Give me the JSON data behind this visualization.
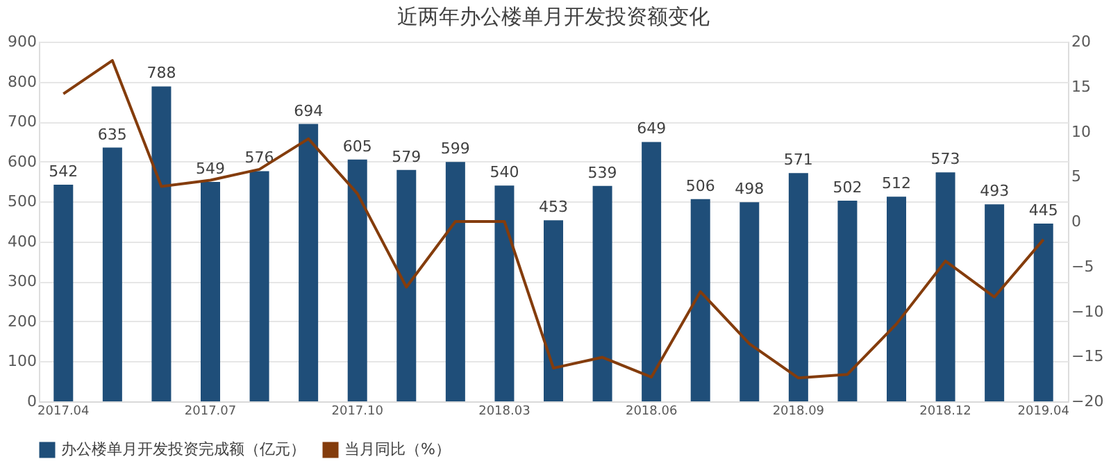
{
  "chart_data": {
    "type": "bar",
    "title": "近两年办公楼单月开发投资额变化",
    "categories": [
      "2017.04",
      null,
      null,
      "2017.07",
      null,
      null,
      "2017.10",
      null,
      null,
      "2018.03",
      null,
      null,
      "2018.06",
      null,
      null,
      "2018.09",
      null,
      null,
      "2018.12",
      null,
      "2019.04"
    ],
    "series": [
      {
        "name": "办公楼单月开发投资完成额（亿元）",
        "color": "#1f4e79",
        "values": [
          542,
          635,
          788,
          549,
          576,
          694,
          605,
          579,
          599,
          540,
          453,
          539,
          649,
          506,
          498,
          571,
          502,
          512,
          573,
          493,
          445
        ],
        "value_labels": [
          "542",
          "635",
          "788",
          "549",
          "576",
          "694",
          "605",
          "579",
          "599",
          "540",
          "453",
          "539",
          "649",
          "506",
          "498",
          "571",
          "502",
          "512",
          "573",
          "493",
          "445"
        ]
      },
      {
        "name": "当月同比（%）",
        "type": "line",
        "axis": "y2",
        "color": "#843c0c",
        "values": [
          14.2,
          17.9,
          3.9,
          4.6,
          5.8,
          9.2,
          3.1,
          -7.3,
          0,
          0,
          -16.3,
          -15.1,
          -17.3,
          -7.8,
          -13.6,
          -17.4,
          -17.0,
          -11.4,
          -4.4,
          -8.4,
          -2.0
        ]
      }
    ],
    "ylim": [
      0,
      900
    ],
    "yticks": [
      0,
      100,
      200,
      300,
      400,
      500,
      600,
      700,
      800,
      900
    ],
    "y2lim": [
      -20,
      20
    ],
    "y2ticks": [
      -20,
      -15,
      -10,
      -5,
      0,
      5,
      10,
      15,
      20
    ],
    "grid": "y",
    "legend": "bottom",
    "marker": "none",
    "line_style": "solid"
  }
}
